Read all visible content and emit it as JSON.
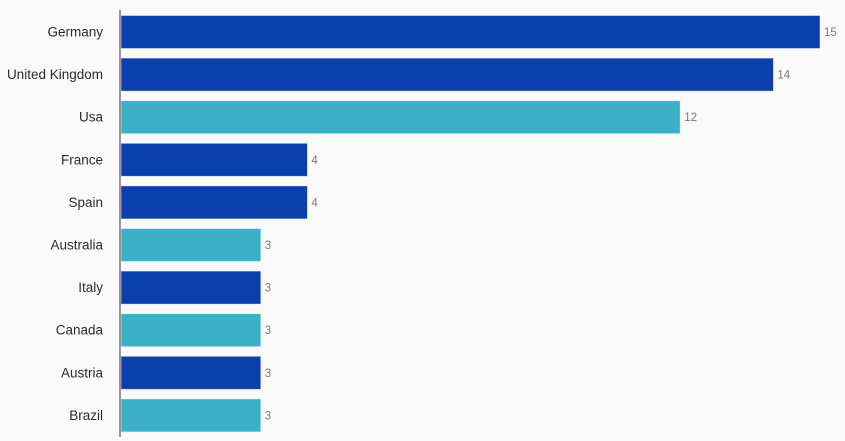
{
  "chart_data": {
    "type": "bar",
    "orientation": "horizontal",
    "categories": [
      "Germany",
      "United Kingdom",
      "Usa",
      "France",
      "Spain",
      "Australia",
      "Italy",
      "Canada",
      "Austria",
      "Brazil"
    ],
    "values": [
      15,
      14,
      12,
      4,
      4,
      3,
      3,
      3,
      3,
      3
    ],
    "bar_colors": [
      "#0b3fae",
      "#0b3fae",
      "#3cb0c9",
      "#0b3fae",
      "#0b3fae",
      "#3cb0c9",
      "#0b3fae",
      "#3cb0c9",
      "#0b3fae",
      "#3cb0c9"
    ],
    "xlim": [
      0,
      15
    ],
    "grid": false,
    "legend": "none",
    "title": "",
    "xlabel": "",
    "ylabel": ""
  }
}
